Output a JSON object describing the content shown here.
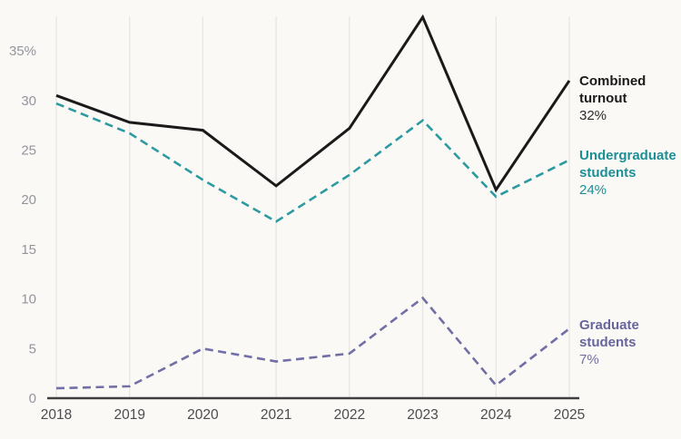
{
  "chart_data": {
    "type": "line",
    "title": "",
    "xlabel": "",
    "ylabel": "",
    "x": [
      "2018",
      "2019",
      "2020",
      "2021",
      "2022",
      "2023",
      "2024",
      "2025"
    ],
    "ylim": [
      0,
      38.5
    ],
    "grid": "vertical-only",
    "legend_position": "right-of-lines",
    "yticks": [
      {
        "value": 0,
        "label": "0"
      },
      {
        "value": 5,
        "label": "5"
      },
      {
        "value": 10,
        "label": "10"
      },
      {
        "value": 15,
        "label": "15"
      },
      {
        "value": 20,
        "label": "20"
      },
      {
        "value": 25,
        "label": "25"
      },
      {
        "value": 30,
        "label": "30"
      },
      {
        "value": 35,
        "label": "35%"
      }
    ],
    "series": [
      {
        "name": "Combined turnout",
        "label_line1": "Combined",
        "label_line2": "turnout",
        "pct_label": "32%",
        "color": "#1a1a1a",
        "dashed": false,
        "stroke_width": 3,
        "values": [
          30.5,
          27.8,
          27,
          21.4,
          27.2,
          38.4,
          21,
          32
        ]
      },
      {
        "name": "Undergraduate students",
        "label_line1": "Undergraduate",
        "label_line2": "students",
        "pct_label": "24%",
        "color": "#2b9ba1",
        "dashed": true,
        "stroke_width": 2.6,
        "values": [
          29.7,
          26.7,
          22,
          17.8,
          22.5,
          28,
          20.3,
          24
        ]
      },
      {
        "name": "Graduate students",
        "label_line1": "Graduate",
        "label_line2": "students",
        "pct_label": "7%",
        "color": "#716fa5",
        "dashed": true,
        "stroke_width": 2.6,
        "values": [
          1,
          1.2,
          5,
          3.7,
          4.5,
          10.1,
          1.3,
          7
        ]
      }
    ]
  },
  "style": {
    "background": "#faf9f6",
    "gridline_color": "#e8e6e2",
    "axis_color": "#3f3f3f",
    "ytick_color": "#93959d",
    "xtick_color": "#4c4c4f"
  }
}
